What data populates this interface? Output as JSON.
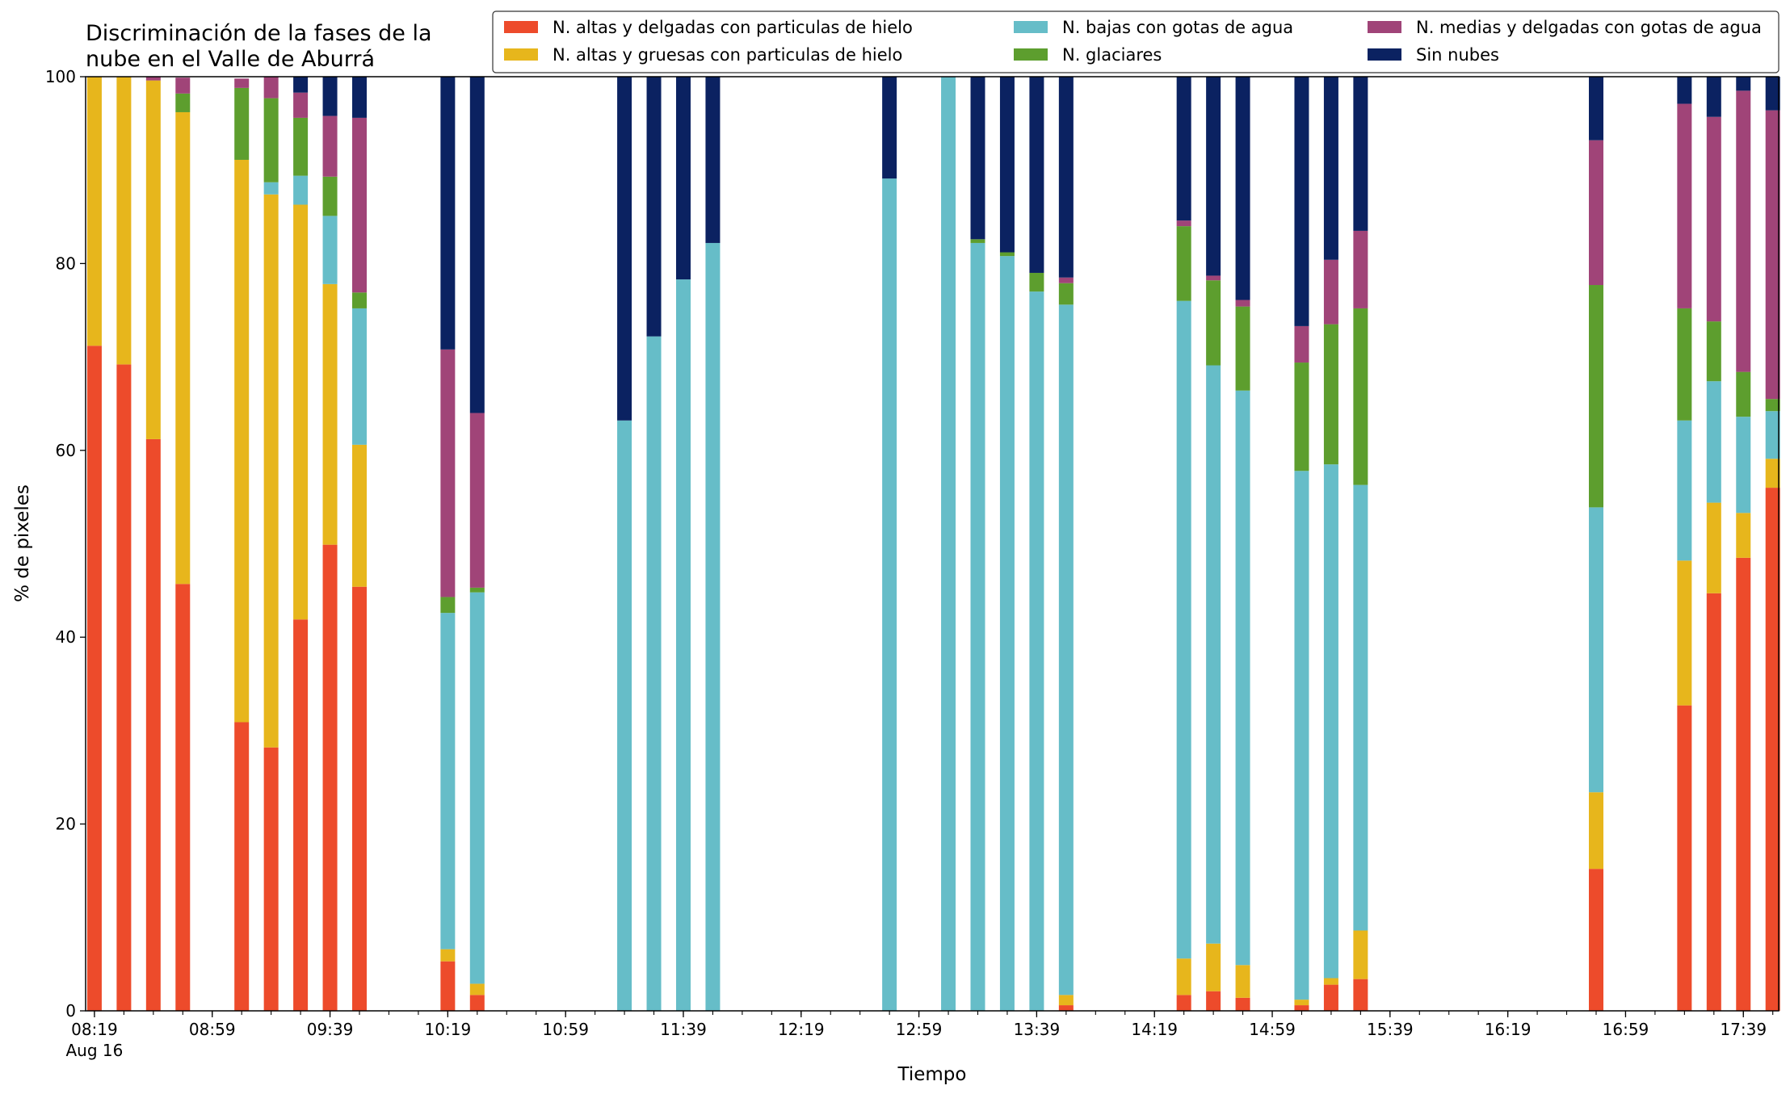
{
  "chart_data": {
    "type": "bar",
    "stacked": true,
    "title_lines": [
      "Discriminación de la fases de la",
      "nube en el Valle de Aburrá"
    ],
    "xlabel": "Tiempo",
    "ylabel": "% de pixeles",
    "ylim": [
      0,
      100
    ],
    "yticks": [
      "0",
      "20",
      "40",
      "60",
      "80",
      "100"
    ],
    "xticks": [
      {
        "time": "08:19",
        "label": "08:19",
        "sublabel": "Aug 16"
      },
      {
        "time": "08:59",
        "label": "08:59"
      },
      {
        "time": "09:39",
        "label": "09:39"
      },
      {
        "time": "10:19",
        "label": "10:19"
      },
      {
        "time": "10:59",
        "label": "10:59"
      },
      {
        "time": "11:39",
        "label": "11:39"
      },
      {
        "time": "12:19",
        "label": "12:19"
      },
      {
        "time": "12:59",
        "label": "12:59"
      },
      {
        "time": "13:39",
        "label": "13:39"
      },
      {
        "time": "14:19",
        "label": "14:19"
      },
      {
        "time": "14:59",
        "label": "14:59"
      },
      {
        "time": "15:39",
        "label": "15:39"
      },
      {
        "time": "16:19",
        "label": "16:19"
      },
      {
        "time": "16:59",
        "label": "16:59"
      },
      {
        "time": "17:39",
        "label": "17:39"
      }
    ],
    "xlim": [
      "08:16",
      "17:51"
    ],
    "legend_position": "top-right",
    "grid": false,
    "x": [
      "08:19",
      "08:29",
      "08:39",
      "08:49",
      "09:09",
      "09:19",
      "09:29",
      "09:39",
      "09:49",
      "10:19",
      "10:29",
      "11:19",
      "11:29",
      "11:39",
      "11:49",
      "12:49",
      "13:09",
      "13:19",
      "13:29",
      "13:39",
      "13:49",
      "14:29",
      "14:39",
      "14:49",
      "15:09",
      "15:19",
      "15:29",
      "16:49",
      "17:19",
      "17:29",
      "17:39",
      "17:49"
    ],
    "series": [
      {
        "name": "N. altas y delgadas con particulas de hielo",
        "color": "#ed4b2b",
        "values": [
          71.2,
          69.2,
          61.2,
          45.7,
          30.9,
          28.2,
          41.9,
          49.9,
          45.4,
          5.3,
          1.7,
          0,
          0,
          0,
          0,
          0,
          0,
          0,
          0,
          0,
          0.6,
          1.7,
          2.1,
          1.4,
          0.6,
          2.8,
          3.4,
          15.2,
          32.7,
          44.7,
          48.5,
          56.0
        ]
      },
      {
        "name": "N. altas y gruesas con particulas de hielo",
        "color": "#e7b61c",
        "values": [
          28.8,
          30.8,
          38.4,
          50.5,
          60.2,
          59.2,
          44.4,
          27.9,
          15.2,
          1.3,
          1.2,
          0,
          0,
          0,
          0,
          0,
          0,
          0,
          0,
          0,
          1.1,
          3.9,
          5.1,
          3.5,
          0.6,
          0.7,
          5.2,
          8.2,
          15.5,
          9.7,
          4.8,
          3.1
        ]
      },
      {
        "name": "N. bajas con gotas de agua",
        "color": "#66bdc8",
        "values": [
          0,
          0,
          0,
          0,
          0,
          1.3,
          3.1,
          7.3,
          14.6,
          36.0,
          41.9,
          63.2,
          72.2,
          78.3,
          82.2,
          89.1,
          100,
          82.2,
          80.8,
          77.0,
          73.9,
          70.4,
          61.9,
          61.5,
          56.6,
          55.0,
          47.7,
          30.5,
          15.0,
          13.0,
          10.3,
          5.1
        ]
      },
      {
        "name": "N. glaciares",
        "color": "#5d9e2e",
        "values": [
          0,
          0,
          0,
          2.0,
          7.7,
          9.0,
          6.2,
          4.2,
          1.7,
          1.7,
          0.5,
          0,
          0,
          0,
          0,
          0,
          0,
          0.4,
          0.4,
          2.0,
          2.3,
          8.0,
          9.1,
          9.0,
          11.6,
          15.0,
          18.9,
          23.8,
          12.0,
          6.4,
          4.8,
          1.3
        ]
      },
      {
        "name": "N. medias y delgadas con gotas de agua",
        "color": "#a04478",
        "values": [
          0,
          0,
          0.4,
          1.7,
          1.0,
          2.3,
          2.7,
          6.5,
          18.7,
          26.5,
          18.7,
          0,
          0,
          0,
          0,
          0,
          0,
          0,
          0,
          0,
          0.6,
          0.6,
          0.5,
          0.7,
          3.9,
          6.9,
          8.3,
          15.5,
          21.9,
          21.9,
          30.1,
          30.9
        ]
      },
      {
        "name": "Sin nubes",
        "color": "#0b2261",
        "values": [
          0,
          0,
          0,
          0,
          0,
          0,
          1.7,
          4.2,
          4.4,
          29.2,
          36.0,
          36.8,
          27.8,
          21.7,
          17.8,
          10.9,
          0,
          17.4,
          18.8,
          21.0,
          21.5,
          15.4,
          21.3,
          23.9,
          26.7,
          19.6,
          16.5,
          6.8,
          2.9,
          4.3,
          1.5,
          3.6
        ]
      }
    ]
  }
}
